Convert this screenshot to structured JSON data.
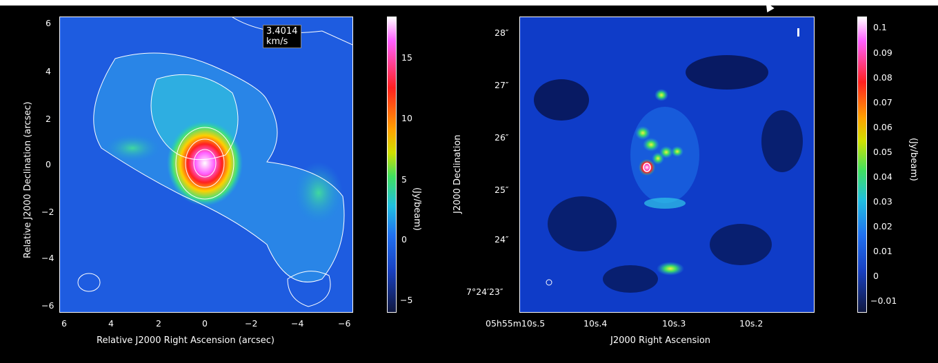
{
  "left": {
    "velocity_badge": "3.4014 km/s",
    "ylabel": "Relative J2000 Declination (arcsec)",
    "xlabel": "Relative J2000 Right Ascension (arcsec)",
    "yticks": [
      "6",
      "4",
      "2",
      "0",
      "−2",
      "−4",
      "−6"
    ],
    "xticks": [
      "6",
      "4",
      "2",
      "0",
      "−2",
      "−4",
      "−6"
    ],
    "colorbar": {
      "label": "(Jy/beam)",
      "ticks": [
        "15",
        "10",
        "5",
        "0",
        "−5"
      ]
    }
  },
  "right": {
    "ylabel": "J2000 Declination",
    "xlabel": "J2000 Right Ascension",
    "yticks": [
      "28″",
      "27″",
      "26″",
      "25″",
      "24″",
      "7°24′23″"
    ],
    "xticks": [
      "05h55m10s.5",
      "10s.4",
      "10s.3",
      "10s.2"
    ],
    "colorbar": {
      "label": "(Jy/beam)",
      "ticks": [
        "0.1",
        "0.09",
        "0.08",
        "0.07",
        "0.06",
        "0.05",
        "0.04",
        "0.03",
        "0.02",
        "0.01",
        "0",
        "−0.01"
      ]
    }
  },
  "colors": {
    "background": "#000000",
    "map_base": "#1a5ae0",
    "contour": "#ffffff"
  },
  "icons": {
    "cursor": "mouse-pointer-icon"
  }
}
